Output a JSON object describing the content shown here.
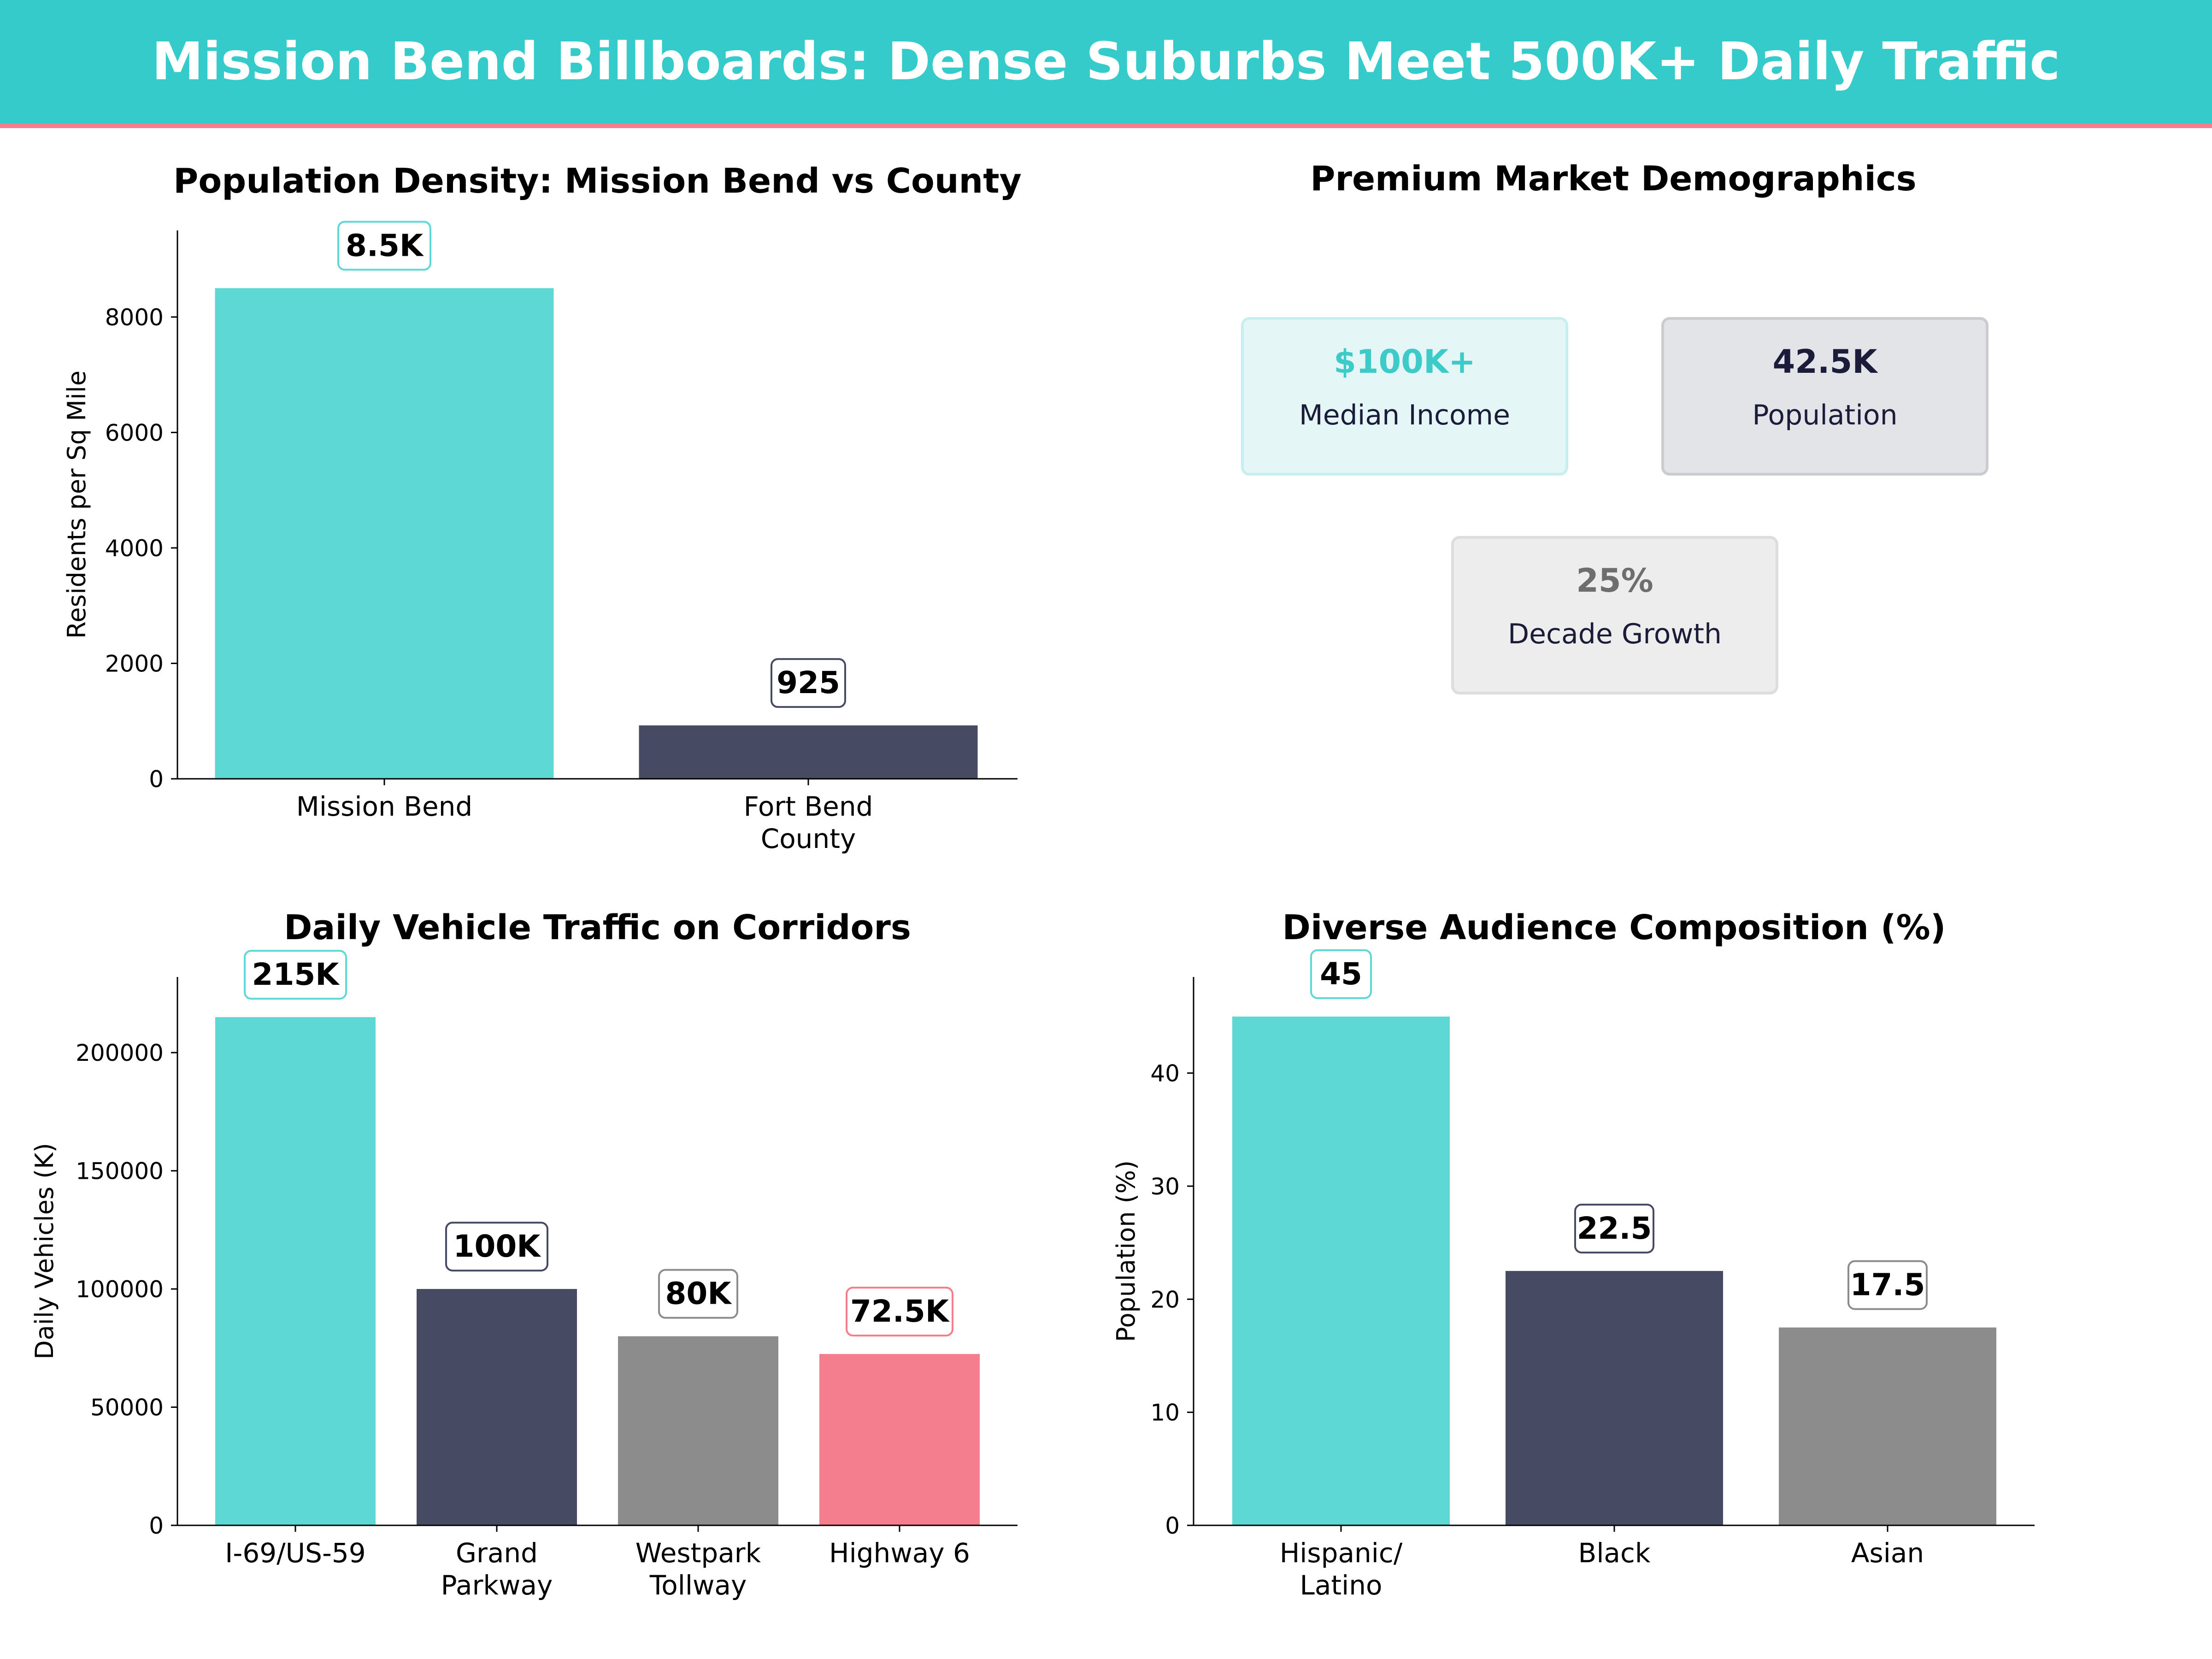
{
  "header": {
    "title": "Mission Bend Billboards: Dense Suburbs Meet 500K+ Daily Traffic"
  },
  "colors": {
    "teal": "#5ED8D5",
    "navy": "#464A62",
    "gray": "#8C8C8C",
    "pink": "#F47E8E",
    "header_bg": "#36CBCB",
    "accent_line": "#F47E8E"
  },
  "demographics": {
    "title": "Premium Market Demographics",
    "cards": [
      {
        "value": "$100K+",
        "label": "Median Income",
        "value_color": "#3CCBC8",
        "bg": "#E4F6F6",
        "border": "#C9EEEE"
      },
      {
        "value": "42.5K",
        "label": "Population",
        "value_color": "#1B1B3A",
        "bg": "#E3E4E8",
        "border": "#CBCCD0"
      },
      {
        "value": "25%",
        "label": "Decade Growth",
        "value_color": "#6E6E6E",
        "bg": "#EDEDED",
        "border": "#DDDDDD"
      }
    ]
  },
  "chart_data": [
    {
      "id": "density",
      "type": "bar",
      "title": "Population Density: Mission Bend vs County",
      "xlabel": "",
      "ylabel": "Residents per Sq Mile",
      "categories": [
        "Mission Bend",
        "Fort Bend\nCounty"
      ],
      "values": [
        8500,
        925
      ],
      "data_labels": [
        "8.5K",
        "925"
      ],
      "colors": [
        "#5ED8D5",
        "#464A62"
      ],
      "label_borders": [
        "#5ED8D5",
        "#464A62"
      ],
      "yticks": [
        0,
        2000,
        4000,
        6000,
        8000
      ],
      "ylim": [
        0,
        9500
      ]
    },
    {
      "id": "traffic",
      "type": "bar",
      "title": "Daily Vehicle Traffic on Corridors",
      "xlabel": "",
      "ylabel": "Daily Vehicles (K)",
      "categories": [
        "I-69/US-59",
        "Grand\nParkway",
        "Westpark\nTollway",
        "Highway 6"
      ],
      "values": [
        215000,
        100000,
        80000,
        72500
      ],
      "data_labels": [
        "215K",
        "100K",
        "80K",
        "72.5K"
      ],
      "colors": [
        "#5ED8D5",
        "#464A62",
        "#8C8C8C",
        "#F47E8E"
      ],
      "label_borders": [
        "#5ED8D5",
        "#464A62",
        "#8C8C8C",
        "#F47E8E"
      ],
      "yticks": [
        0,
        50000,
        100000,
        150000,
        200000
      ],
      "ylim": [
        0,
        232000
      ]
    },
    {
      "id": "audience",
      "type": "bar",
      "title": "Diverse Audience Composition (%)",
      "xlabel": "",
      "ylabel": "Population (%)",
      "categories": [
        "Hispanic/\nLatino",
        "Black",
        "Asian"
      ],
      "values": [
        45,
        22.5,
        17.5
      ],
      "data_labels": [
        "45",
        "22.5",
        "17.5"
      ],
      "colors": [
        "#5ED8D5",
        "#464A62",
        "#8C8C8C"
      ],
      "label_borders": [
        "#5ED8D5",
        "#464A62",
        "#8C8C8C"
      ],
      "yticks": [
        0,
        10,
        20,
        30,
        40
      ],
      "ylim": [
        0,
        48.5
      ]
    }
  ]
}
